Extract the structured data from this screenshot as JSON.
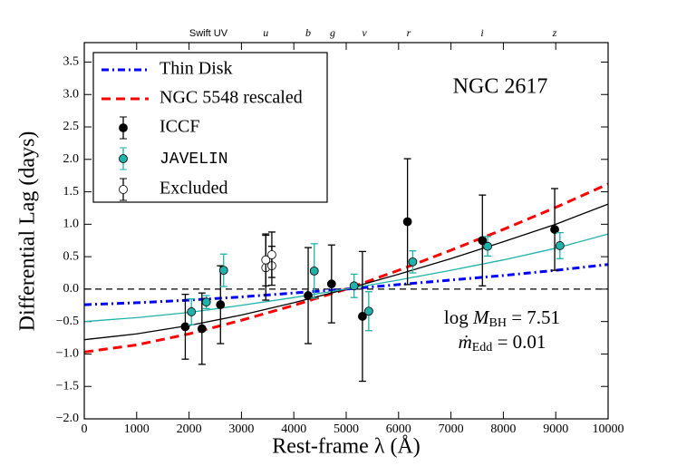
{
  "chart_data": {
    "type": "errorbar",
    "title": "NGC 2617",
    "xlabel": "Rest-frame λ (Å)",
    "ylabel": "Differential Lag (days)",
    "xlim": [
      0,
      10000
    ],
    "ylim": [
      -2.0,
      3.8
    ],
    "xticks": [
      0,
      1000,
      2000,
      3000,
      4000,
      5000,
      6000,
      7000,
      8000,
      9000,
      10000
    ],
    "yticks": [
      {
        "value": -2.0,
        "label": "−2.0"
      },
      {
        "value": -1.5,
        "label": "−1.5"
      },
      {
        "value": -1.0,
        "label": "−1.0"
      },
      {
        "value": -0.5,
        "label": "−0.5"
      },
      {
        "value": 0,
        "label": "0.0"
      },
      {
        "value": 0.5,
        "label": "0.5"
      },
      {
        "value": 1.0,
        "label": "1.0"
      },
      {
        "value": 1.5,
        "label": "1.5"
      },
      {
        "value": 2.0,
        "label": "2.0"
      },
      {
        "value": 2.5,
        "label": "2.5"
      },
      {
        "value": 3.0,
        "label": "3.0"
      },
      {
        "value": 3.5,
        "label": "3.5"
      }
    ],
    "hline": 0,
    "legend": "upper left",
    "top_labels": [
      {
        "label": "Swift UV",
        "x": 2370
      },
      {
        "label": "u",
        "x": 3465
      },
      {
        "label": "b",
        "x": 4274
      },
      {
        "label": "g",
        "x": 4740
      },
      {
        "label": "v",
        "x": 5346
      },
      {
        "label": "r",
        "x": 6194
      },
      {
        "label": "i",
        "x": 7595
      },
      {
        "label": "z",
        "x": 8979
      }
    ],
    "line_x": [
      0,
      1000,
      2000,
      3000,
      4000,
      5000,
      6000,
      7000,
      8000,
      9000,
      10000
    ],
    "lines": [
      {
        "name": "Thin Disk",
        "color": "#0000ff",
        "dash": "dashdot",
        "values": [
          -0.24,
          -0.21,
          -0.17,
          -0.12,
          -0.06,
          0,
          0.07,
          0.14,
          0.21,
          0.29,
          0.38
        ]
      },
      {
        "name": "NGC 5548 rescaled",
        "color": "#ff0000",
        "dash": "dashed",
        "values": [
          -0.97,
          -0.86,
          -0.69,
          -0.48,
          -0.25,
          0,
          0.29,
          0.6,
          0.92,
          1.26,
          1.62
        ]
      },
      {
        "color": "#000000",
        "dash": "solid",
        "values": [
          -0.78,
          -0.69,
          -0.56,
          -0.4,
          -0.21,
          0,
          0.23,
          0.47,
          0.73,
          1.0,
          1.31
        ]
      },
      {
        "color": "#20b2aa",
        "dash": "solid",
        "values": [
          -0.5,
          -0.44,
          -0.36,
          -0.25,
          -0.13,
          0,
          0.14,
          0.29,
          0.45,
          0.63,
          0.85
        ]
      }
    ],
    "series": [
      {
        "name": "ICCF",
        "color": "#000000",
        "fill": "#000000",
        "x": [
          1928,
          2246,
          2600,
          4274,
          4720,
          5310,
          6170,
          7600,
          8980
        ],
        "values": [
          -0.58,
          -0.61,
          -0.24,
          -0.1,
          0.08,
          -0.42,
          1.04,
          0.75,
          0.92
        ],
        "errors": [
          0.5,
          0.55,
          0.6,
          0.74,
          0.6,
          1.0,
          0.97,
          0.7,
          0.63
        ]
      },
      {
        "name": "JAVELIN",
        "color": "#20b2aa",
        "fill": "#20b2aa",
        "x": [
          2045,
          2330,
          2660,
          4390,
          5150,
          5430,
          6270,
          7700,
          9080
        ],
        "values": [
          -0.35,
          -0.2,
          0.29,
          0.28,
          0.05,
          -0.34,
          0.42,
          0.66,
          0.67
        ],
        "errors": [
          0.2,
          0.1,
          0.25,
          0.42,
          0.18,
          0.3,
          0.17,
          0.15,
          0.2
        ]
      },
      {
        "name": "Excluded",
        "color": "#000000",
        "fill": "#ffffff",
        "x": [
          3465,
          3465,
          3580,
          3580
        ],
        "values": [
          0.33,
          0.45,
          0.36,
          0.53
        ],
        "errors": [
          0.5,
          0.4,
          0.3,
          0.35
        ]
      }
    ],
    "annotation": {
      "prefix": "log",
      "symbol": "M",
      "subscript": "BH",
      "value_text": "= 7.51"
    },
    "annotation2": {
      "symbol": "ṁ",
      "subscript": "Edd",
      "value_text": "= 0.01"
    }
  }
}
